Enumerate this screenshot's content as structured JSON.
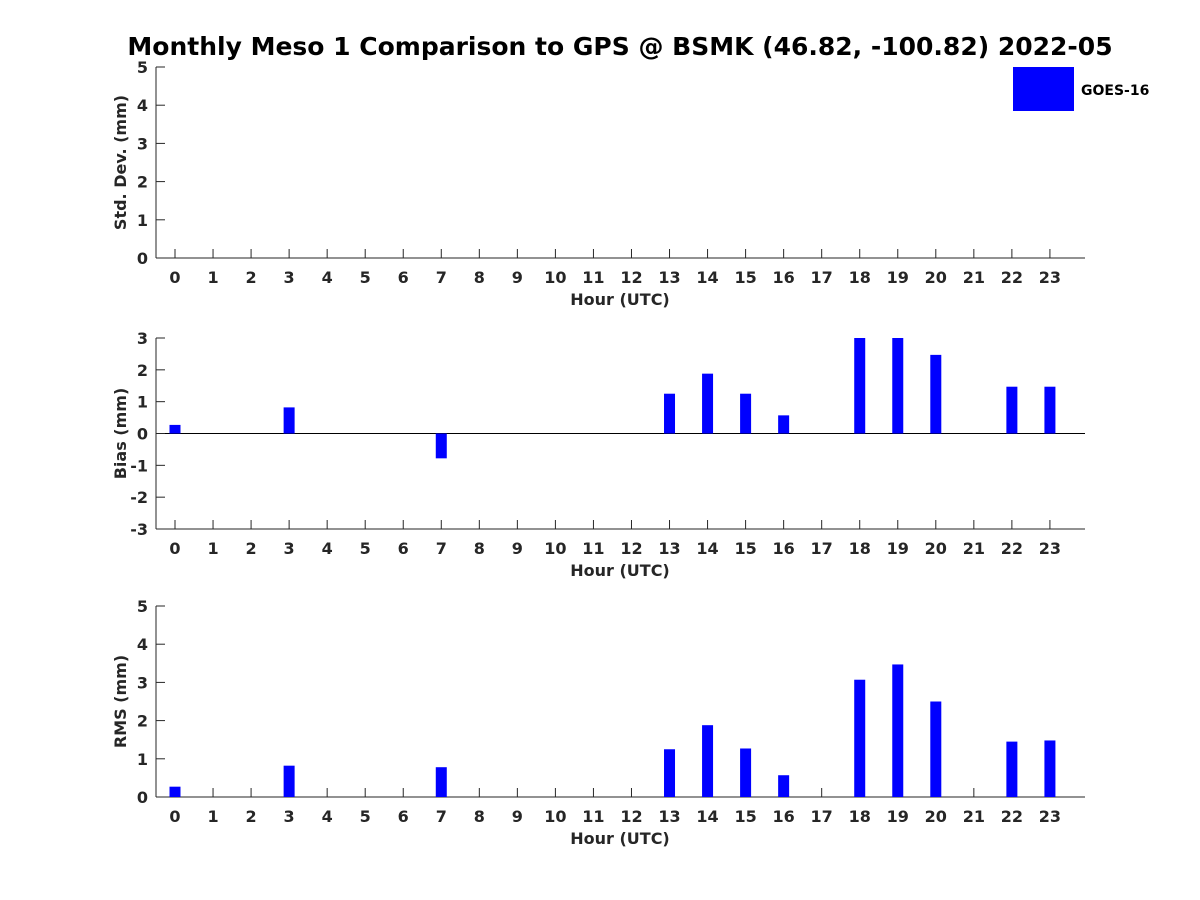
{
  "figure": {
    "title": "Monthly Meso 1 Comparison to GPS @ BSMK (46.82, -100.82) 2022-05"
  },
  "legend": {
    "placement": "top-right",
    "entries": [
      {
        "label": "GOES-16",
        "color": "#0000ff"
      }
    ]
  },
  "chart_data": [
    {
      "type": "bar",
      "series_name": "GOES-16",
      "color": "#0000ff",
      "categories": [
        "0",
        "1",
        "2",
        "3",
        "4",
        "5",
        "6",
        "7",
        "8",
        "9",
        "10",
        "11",
        "12",
        "13",
        "14",
        "15",
        "16",
        "17",
        "18",
        "19",
        "20",
        "21",
        "22",
        "23"
      ],
      "values": [
        null,
        null,
        null,
        null,
        null,
        null,
        null,
        null,
        null,
        null,
        null,
        null,
        null,
        null,
        null,
        null,
        null,
        null,
        null,
        null,
        null,
        null,
        null,
        null
      ],
      "xlabel": "Hour (UTC)",
      "ylabel": "Std. Dev. (mm)",
      "ylim": [
        0,
        5
      ],
      "yticks": [
        "0",
        "1",
        "2",
        "3",
        "4",
        "5"
      ],
      "grid": false
    },
    {
      "type": "bar",
      "series_name": "GOES-16",
      "color": "#0000ff",
      "categories": [
        "0",
        "1",
        "2",
        "3",
        "4",
        "5",
        "6",
        "7",
        "8",
        "9",
        "10",
        "11",
        "12",
        "13",
        "14",
        "15",
        "16",
        "17",
        "18",
        "19",
        "20",
        "21",
        "22",
        "23"
      ],
      "values": [
        0.27,
        null,
        null,
        0.82,
        null,
        null,
        null,
        -0.78,
        null,
        null,
        null,
        null,
        null,
        1.25,
        1.88,
        1.25,
        0.57,
        null,
        3.0,
        3.0,
        2.47,
        null,
        1.47,
        1.47
      ],
      "xlabel": "Hour (UTC)",
      "ylabel": "Bias (mm)",
      "ylim": [
        -3,
        3
      ],
      "yticks": [
        "-3",
        "-2",
        "-1",
        "0",
        "1",
        "2",
        "3"
      ],
      "zero_line": true,
      "grid": false
    },
    {
      "type": "bar",
      "series_name": "GOES-16",
      "color": "#0000ff",
      "categories": [
        "0",
        "1",
        "2",
        "3",
        "4",
        "5",
        "6",
        "7",
        "8",
        "9",
        "10",
        "11",
        "12",
        "13",
        "14",
        "15",
        "16",
        "17",
        "18",
        "19",
        "20",
        "21",
        "22",
        "23"
      ],
      "values": [
        0.27,
        null,
        null,
        0.82,
        null,
        null,
        null,
        0.78,
        null,
        null,
        null,
        null,
        null,
        1.25,
        1.88,
        1.27,
        0.57,
        null,
        3.07,
        3.47,
        2.5,
        null,
        1.45,
        1.48
      ],
      "xlabel": "Hour (UTC)",
      "ylabel": "RMS (mm)",
      "ylim": [
        0,
        5
      ],
      "yticks": [
        "0",
        "1",
        "2",
        "3",
        "4",
        "5"
      ],
      "grid": false
    }
  ]
}
